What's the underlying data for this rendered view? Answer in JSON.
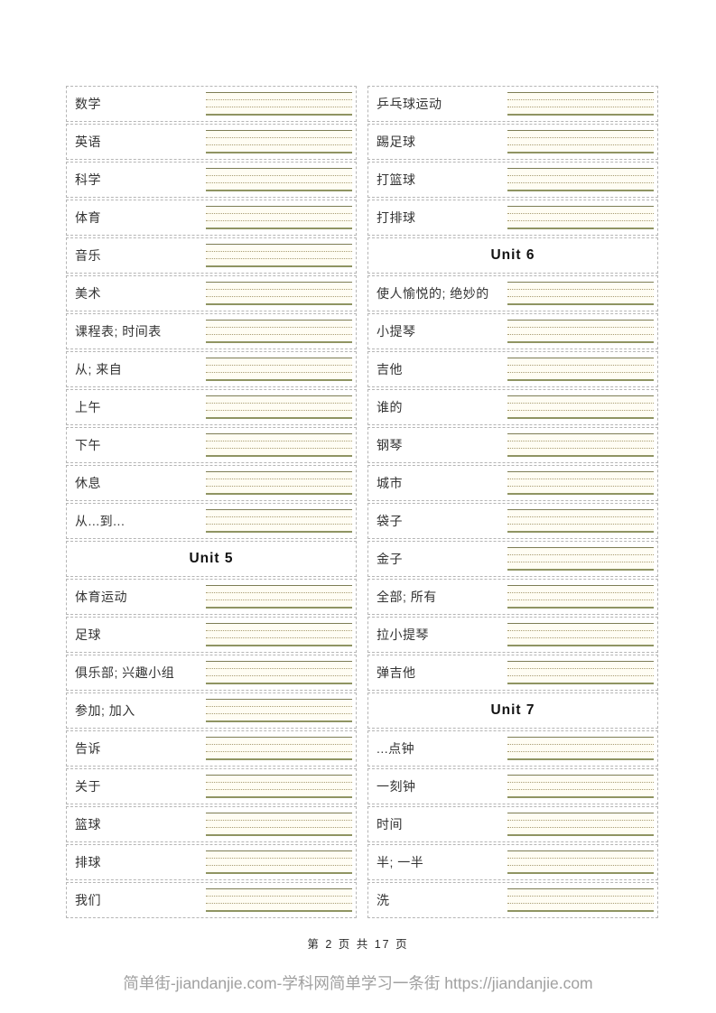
{
  "page": {
    "footer_page_info": "第 2 页 共 17 页",
    "watermark": "简单街-jiandanjie.com-学科网简单学习一条街 https://jiandanjie.com"
  },
  "colors": {
    "cell_border": "#b5b5b5",
    "line_solid_top": "#7d7d55",
    "line_dotted": "#a89c72",
    "line_solid_bottom": "#8f9462",
    "lines_background": "#fffdf3",
    "text": "#333333",
    "watermark": "#a0a0a0"
  },
  "columns": [
    {
      "rows": [
        {
          "type": "word",
          "label": "数学"
        },
        {
          "type": "word",
          "label": "英语"
        },
        {
          "type": "word",
          "label": "科学"
        },
        {
          "type": "word",
          "label": "体育"
        },
        {
          "type": "word",
          "label": "音乐"
        },
        {
          "type": "word",
          "label": "美术"
        },
        {
          "type": "word",
          "label": "课程表; 时间表"
        },
        {
          "type": "word",
          "label": "从; 来自"
        },
        {
          "type": "word",
          "label": "上午"
        },
        {
          "type": "word",
          "label": "下午"
        },
        {
          "type": "word",
          "label": "休息"
        },
        {
          "type": "word",
          "label": "从...到..."
        },
        {
          "type": "unit",
          "label": "Unit 5"
        },
        {
          "type": "word",
          "label": "体育运动"
        },
        {
          "type": "word",
          "label": "足球"
        },
        {
          "type": "word",
          "label": "俱乐部; 兴趣小组"
        },
        {
          "type": "word",
          "label": "参加; 加入"
        },
        {
          "type": "word",
          "label": "告诉"
        },
        {
          "type": "word",
          "label": "关于"
        },
        {
          "type": "word",
          "label": "篮球"
        },
        {
          "type": "word",
          "label": "排球"
        },
        {
          "type": "word",
          "label": "我们"
        }
      ]
    },
    {
      "rows": [
        {
          "type": "word",
          "label": "乒乓球运动"
        },
        {
          "type": "word",
          "label": "踢足球"
        },
        {
          "type": "word",
          "label": "打篮球"
        },
        {
          "type": "word",
          "label": "打排球"
        },
        {
          "type": "unit",
          "label": "Unit 6"
        },
        {
          "type": "word",
          "label": "使人愉悦的; 绝妙的"
        },
        {
          "type": "word",
          "label": "小提琴"
        },
        {
          "type": "word",
          "label": "吉他"
        },
        {
          "type": "word",
          "label": "谁的"
        },
        {
          "type": "word",
          "label": "钢琴"
        },
        {
          "type": "word",
          "label": "城市"
        },
        {
          "type": "word",
          "label": "袋子"
        },
        {
          "type": "word",
          "label": "金子"
        },
        {
          "type": "word",
          "label": "全部; 所有"
        },
        {
          "type": "word",
          "label": "拉小提琴"
        },
        {
          "type": "word",
          "label": "弹吉他"
        },
        {
          "type": "unit",
          "label": "Unit 7"
        },
        {
          "type": "word",
          "label": "...点钟"
        },
        {
          "type": "word",
          "label": "一刻钟"
        },
        {
          "type": "word",
          "label": "时间"
        },
        {
          "type": "word",
          "label": "半; 一半"
        },
        {
          "type": "word",
          "label": "洗"
        }
      ]
    }
  ]
}
